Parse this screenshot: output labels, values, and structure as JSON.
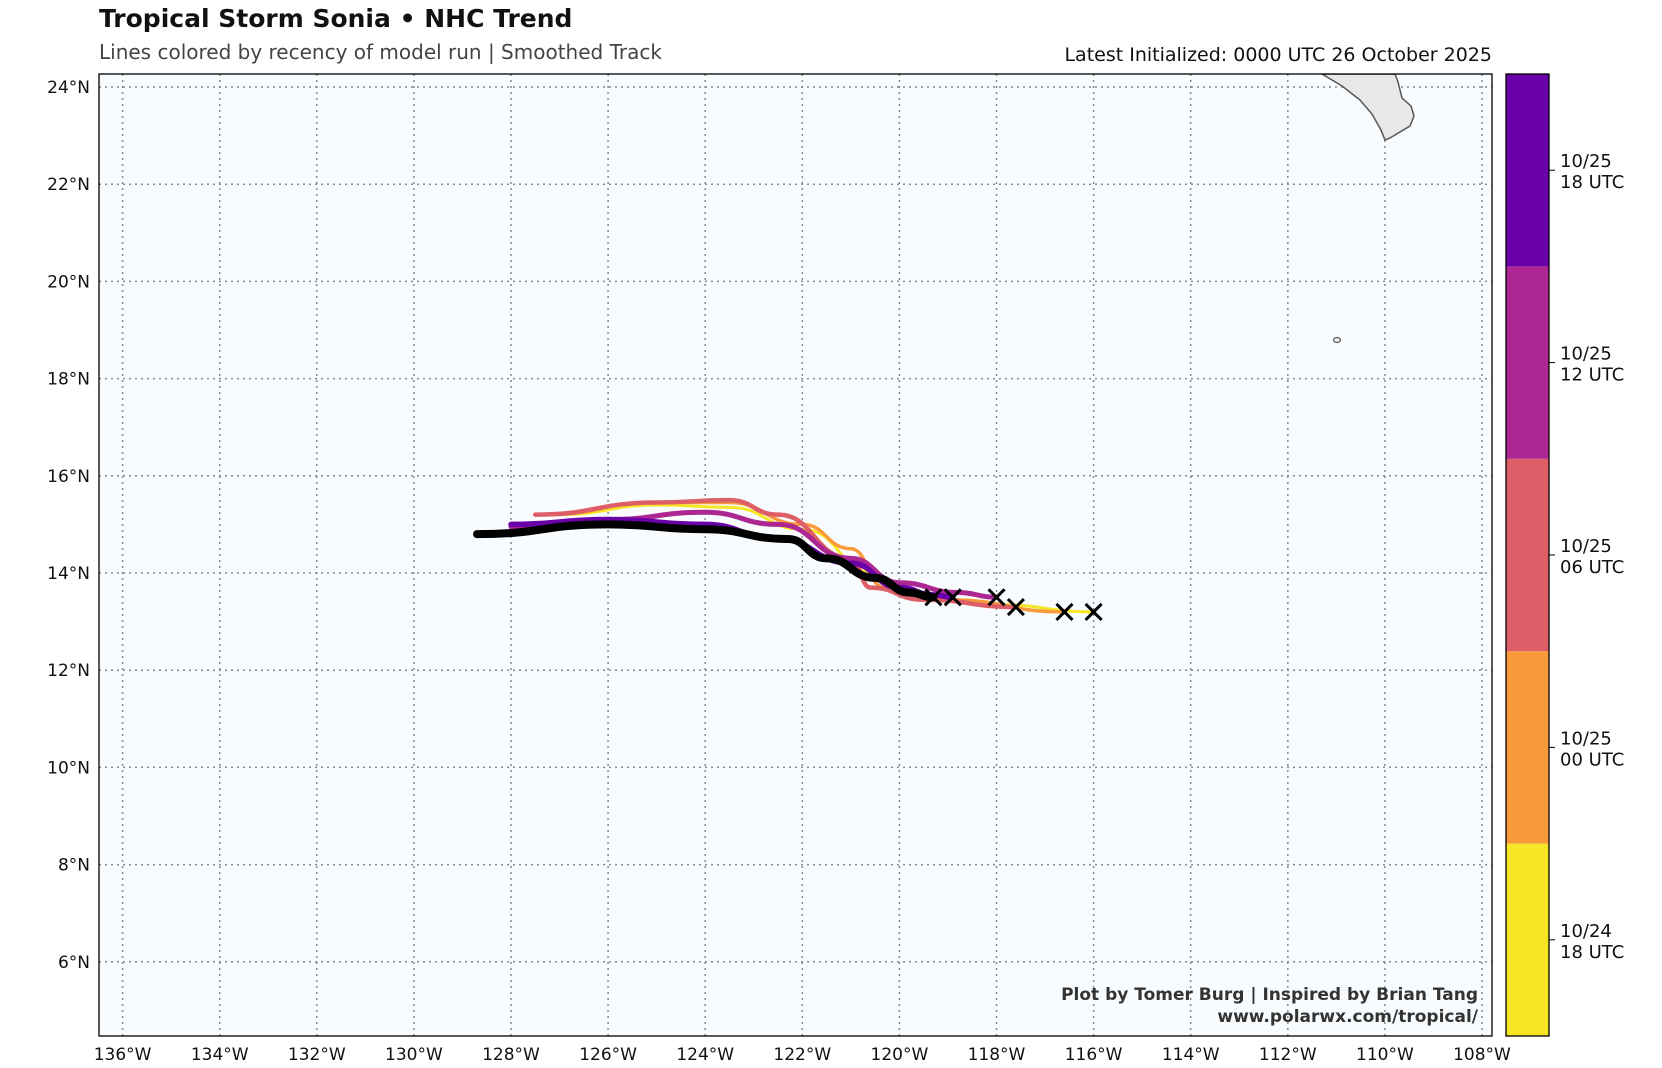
{
  "header": {
    "title": "Tropical Storm Sonia • NHC Trend",
    "subtitle": "Lines colored by recency of model run | Smoothed Track",
    "initialized": "Latest Initialized: 0000 UTC 26 October 2025"
  },
  "credits": [
    "Plot by Tomer Burg | Inspired by Brian Tang",
    "www.polarwx.com/tropical/"
  ],
  "chart_data": {
    "type": "line",
    "x_extent_degW": [
      136.5,
      107.8
    ],
    "y_extent_degN": [
      4.5,
      24.3
    ],
    "lon_ticks": [
      136,
      134,
      132,
      130,
      128,
      126,
      124,
      122,
      120,
      118,
      116,
      114,
      112,
      110,
      108
    ],
    "lon_tick_labels": [
      "136°W",
      "134°W",
      "132°W",
      "130°W",
      "128°W",
      "126°W",
      "124°W",
      "122°W",
      "120°W",
      "118°W",
      "116°W",
      "114°W",
      "112°W",
      "110°W",
      "108°W"
    ],
    "lat_ticks": [
      24,
      22,
      20,
      18,
      16,
      14,
      12,
      10,
      8,
      6
    ],
    "lat_tick_labels": [
      "24°N",
      "22°N",
      "20°N",
      "18°N",
      "16°N",
      "14°N",
      "12°N",
      "10°N",
      "8°N",
      "6°N"
    ],
    "grid": true,
    "colorbar": [
      {
        "label1": "10/24",
        "label2": "18 UTC",
        "color": "#f6e626"
      },
      {
        "label1": "10/25",
        "label2": "00 UTC",
        "color": "#f89a3a"
      },
      {
        "label1": "10/25",
        "label2": "06 UTC",
        "color": "#dd5e66"
      },
      {
        "label1": "10/25",
        "label2": "12 UTC",
        "color": "#ad2793"
      },
      {
        "label1": "10/25",
        "label2": "18 UTC",
        "color": "#6a00a8"
      }
    ],
    "series": [
      {
        "name": "10/24 18 UTC",
        "color": "#f6e626",
        "width": 3,
        "points": [
          [
            127,
            15.2
          ],
          [
            125,
            15.4
          ],
          [
            123.5,
            15.35
          ],
          [
            122,
            14.9
          ],
          [
            120.5,
            14.0
          ],
          [
            120,
            13.6
          ],
          [
            118,
            13.35
          ],
          [
            116,
            13.2
          ]
        ]
      },
      {
        "name": "10/25 00 UTC",
        "color": "#f89a3a",
        "width": 3.5,
        "points": [
          [
            127.3,
            15.2
          ],
          [
            125,
            15.45
          ],
          [
            123.5,
            15.45
          ],
          [
            122,
            15.0
          ],
          [
            121,
            14.5
          ],
          [
            120.3,
            13.7
          ],
          [
            119,
            13.45
          ],
          [
            116.6,
            13.2
          ]
        ]
      },
      {
        "name": "10/25 06 UTC",
        "color": "#dd5e66",
        "width": 4.5,
        "points": [
          [
            127.5,
            15.2
          ],
          [
            125,
            15.45
          ],
          [
            123.5,
            15.5
          ],
          [
            122.5,
            15.2
          ],
          [
            121,
            14.3
          ],
          [
            120.6,
            13.7
          ],
          [
            119.5,
            13.45
          ],
          [
            117.6,
            13.3
          ]
        ]
      },
      {
        "name": "10/25 12 UTC",
        "color": "#ad2793",
        "width": 5,
        "points": [
          [
            128,
            14.95
          ],
          [
            126,
            15.1
          ],
          [
            124,
            15.25
          ],
          [
            122.5,
            15.0
          ],
          [
            121,
            14.3
          ],
          [
            120,
            13.8
          ],
          [
            118.8,
            13.6
          ],
          [
            118,
            13.5
          ]
        ]
      },
      {
        "name": "10/25 18 UTC",
        "color": "#6a00a8",
        "width": 5.5,
        "points": [
          [
            128,
            15.0
          ],
          [
            126,
            15.1
          ],
          [
            124,
            15.0
          ],
          [
            122.5,
            14.7
          ],
          [
            121,
            14.2
          ],
          [
            120,
            13.7
          ],
          [
            119.3,
            13.55
          ],
          [
            118.9,
            13.5
          ]
        ]
      },
      {
        "name": "Latest",
        "color": "#000000",
        "width": 8,
        "points": [
          [
            128.7,
            14.8
          ],
          [
            126,
            15.0
          ],
          [
            124,
            14.9
          ],
          [
            122.3,
            14.7
          ],
          [
            121.5,
            14.3
          ],
          [
            120.5,
            13.9
          ],
          [
            119.8,
            13.6
          ],
          [
            119.3,
            13.5
          ]
        ]
      }
    ],
    "initial_positions": [
      [
        119.3,
        13.5
      ],
      [
        118.9,
        13.5
      ],
      [
        118,
        13.5
      ],
      [
        117.6,
        13.3
      ],
      [
        116.6,
        13.2
      ],
      [
        116,
        13.2
      ]
    ]
  }
}
